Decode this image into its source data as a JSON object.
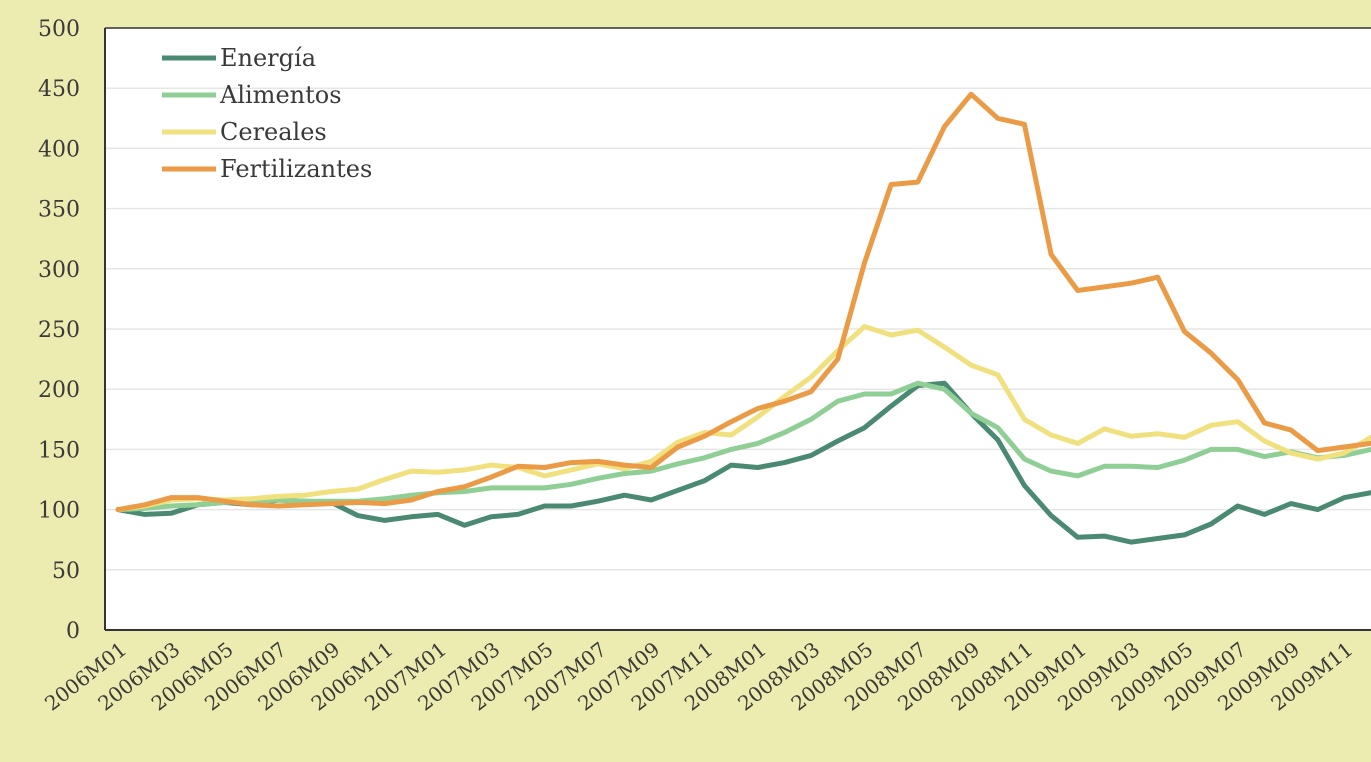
{
  "colors": {
    "background": "#ecebb0",
    "plot_background": "#ffffff",
    "gridline": "#e6e6e6",
    "axis": "#333333",
    "text": "#3a3a3a"
  },
  "chart_data": {
    "type": "line",
    "title": "",
    "xlabel": "",
    "ylabel": "",
    "ylim": [
      0,
      500
    ],
    "yticks": [
      0,
      50,
      100,
      150,
      200,
      250,
      300,
      350,
      400,
      450,
      500
    ],
    "grid": "horizontal",
    "legend_position": "top-left",
    "x": [
      "2006M01",
      "2006M02",
      "2006M03",
      "2006M04",
      "2006M05",
      "2006M06",
      "2006M07",
      "2006M08",
      "2006M09",
      "2006M10",
      "2006M11",
      "2006M12",
      "2007M01",
      "2007M02",
      "2007M03",
      "2007M04",
      "2007M05",
      "2007M06",
      "2007M07",
      "2007M08",
      "2007M09",
      "2007M10",
      "2007M11",
      "2007M12",
      "2008M01",
      "2008M02",
      "2008M03",
      "2008M04",
      "2008M05",
      "2008M06",
      "2008M07",
      "2008M08",
      "2008M09",
      "2008M10",
      "2008M11",
      "2008M12",
      "2009M01",
      "2009M02",
      "2009M03",
      "2009M04",
      "2009M05",
      "2009M06",
      "2009M07",
      "2009M08",
      "2009M09",
      "2009M10",
      "2009M11",
      "2009M12"
    ],
    "xtick_labels": [
      "2006M01",
      "2006M03",
      "2006M05",
      "2006M07",
      "2006M09",
      "2006M11",
      "2007M01",
      "2007M03",
      "2007M05",
      "2007M07",
      "2007M09",
      "2007M11",
      "2008M01",
      "2008M03",
      "2008M05",
      "2008M07",
      "2008M09",
      "2008M11",
      "2009M01",
      "2009M03",
      "2009M05",
      "2009M07",
      "2009M09",
      "2009M11"
    ],
    "series": [
      {
        "name": "Energía",
        "color": "#4a8a72",
        "values": [
          100,
          96,
          97,
          104,
          106,
          104,
          108,
          107,
          106,
          95,
          91,
          94,
          96,
          87,
          94,
          96,
          103,
          103,
          107,
          112,
          108,
          116,
          124,
          137,
          135,
          139,
          145,
          157,
          168,
          186,
          203,
          205,
          180,
          158,
          120,
          95,
          77,
          78,
          73,
          76,
          79,
          88,
          103,
          96,
          105,
          100,
          110,
          114
        ]
      },
      {
        "name": "Alimentos",
        "color": "#8fcf95",
        "values": [
          100,
          101,
          103,
          104,
          106,
          107,
          108,
          107,
          107,
          107,
          109,
          112,
          114,
          115,
          118,
          118,
          118,
          121,
          126,
          130,
          132,
          138,
          143,
          150,
          155,
          164,
          175,
          190,
          196,
          196,
          205,
          200,
          180,
          168,
          142,
          132,
          128,
          136,
          136,
          135,
          141,
          150,
          150,
          144,
          148,
          143,
          145,
          150
        ]
      },
      {
        "name": "Cereales",
        "color": "#f0e07e",
        "values": [
          100,
          103,
          108,
          109,
          108,
          109,
          111,
          112,
          115,
          117,
          125,
          132,
          131,
          133,
          137,
          135,
          128,
          133,
          138,
          134,
          140,
          156,
          164,
          162,
          177,
          194,
          210,
          232,
          252,
          245,
          249,
          235,
          220,
          212,
          175,
          162,
          155,
          167,
          161,
          163,
          160,
          170,
          173,
          157,
          147,
          142,
          147,
          160
        ]
      },
      {
        "name": "Fertilizantes",
        "color": "#eb9a45",
        "values": [
          100,
          104,
          110,
          110,
          107,
          104,
          103,
          104,
          105,
          106,
          105,
          108,
          115,
          119,
          127,
          136,
          135,
          139,
          140,
          137,
          135,
          152,
          161,
          173,
          184,
          190,
          198,
          225,
          305,
          370,
          372,
          418,
          445,
          425,
          420,
          312,
          282,
          285,
          288,
          293,
          248,
          230,
          208,
          172,
          166,
          149,
          152,
          155
        ]
      }
    ]
  }
}
